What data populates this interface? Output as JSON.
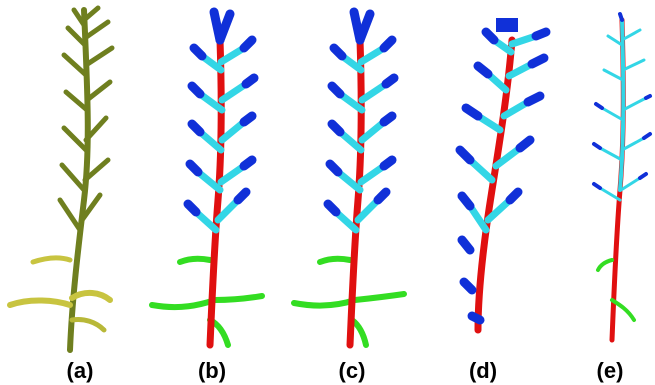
{
  "panels": [
    {
      "id": "a",
      "label": "(a)",
      "render": "original-textured"
    },
    {
      "id": "b",
      "label": "(b)",
      "render": "segmented"
    },
    {
      "id": "c",
      "label": "(c)",
      "render": "segmented"
    },
    {
      "id": "d",
      "label": "(d)",
      "render": "segmented"
    },
    {
      "id": "e",
      "label": "(e)",
      "render": "segmented"
    }
  ],
  "colors": {
    "stem_olive": "#6f7f1f",
    "leaf_yellow": "#c8c440",
    "main_stem": "#e01010",
    "lower_leaf": "#33dd22",
    "upper_branch": "#33d6e6",
    "branch_tip": "#1030d8"
  }
}
